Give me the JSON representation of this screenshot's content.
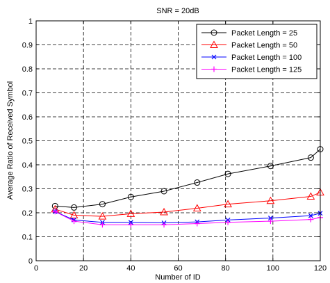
{
  "chart_data": {
    "type": "line",
    "title": "SNR = 20dB",
    "xlabel": "Number of ID",
    "ylabel": "Average Ratio of Received Symbol",
    "xlim": [
      0,
      120
    ],
    "ylim": [
      0,
      1
    ],
    "xticks": [
      0,
      20,
      40,
      60,
      80,
      100,
      120
    ],
    "yticks": [
      0,
      0.1,
      0.2,
      0.3,
      0.4,
      0.5,
      0.6,
      0.7,
      0.8,
      0.9,
      1
    ],
    "grid": true,
    "legend_position": "top-right",
    "x": [
      8,
      16,
      28,
      40,
      54,
      68,
      81,
      99,
      116,
      120
    ],
    "series": [
      {
        "name": "Packet Length = 25",
        "color": "#000000",
        "marker": "circle",
        "values": [
          0.228,
          0.222,
          0.236,
          0.266,
          0.29,
          0.326,
          0.362,
          0.395,
          0.43,
          0.465
        ]
      },
      {
        "name": "Packet Length = 50",
        "color": "#ff0000",
        "marker": "triangle",
        "values": [
          0.215,
          0.19,
          0.185,
          0.196,
          0.203,
          0.219,
          0.236,
          0.25,
          0.268,
          0.285
        ]
      },
      {
        "name": "Packet Length = 100",
        "color": "#0000ff",
        "marker": "x",
        "values": [
          0.205,
          0.17,
          0.16,
          0.16,
          0.158,
          0.162,
          0.17,
          0.178,
          0.188,
          0.198
        ]
      },
      {
        "name": "Packet Length = 125",
        "color": "#ff00ff",
        "marker": "plus",
        "values": [
          0.205,
          0.165,
          0.15,
          0.15,
          0.15,
          0.155,
          0.16,
          0.165,
          0.172,
          0.18
        ]
      }
    ]
  }
}
